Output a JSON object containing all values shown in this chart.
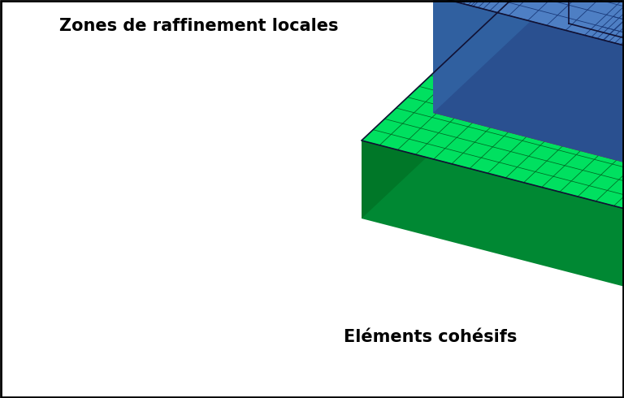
{
  "bg_color": "#ffffff",
  "label_zones": "Zones de raffinement locales",
  "label_elements": "Eléments cohésifs",
  "label_zones_fontsize": 15,
  "label_elements_fontsize": 15,
  "blue_top": "#4E7FC4",
  "blue_front": "#3A65A8",
  "blue_side": "#2D5090",
  "blue_grid": "#1A3A7A",
  "green_top": "#00E060",
  "green_front": "#00B840",
  "green_side": "#009930",
  "green_grid": "#006622",
  "coh_front": "#7A2200",
  "coh_side": "#5A1800",
  "coh_top": "#8B3310"
}
